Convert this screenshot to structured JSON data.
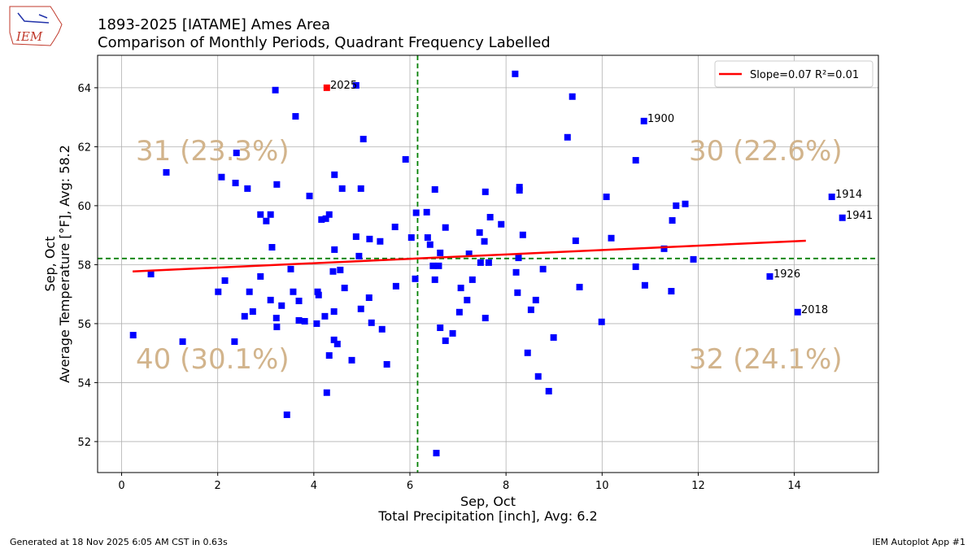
{
  "chart_data": {
    "type": "scatter",
    "title": [
      "1893-2025 [IATAME] Ames Area",
      "Comparison of Monthly Periods, Quadrant Frequency Labelled"
    ],
    "xlabel": [
      "Sep, Oct",
      "Total Precipitation [inch], Avg: 6.2"
    ],
    "ylabel": [
      "Sep, Oct",
      "Average Temperature [°F], Avg: 58.2"
    ],
    "xlim": [
      -0.5,
      15.75
    ],
    "ylim": [
      50.95,
      65.1
    ],
    "xticks": [
      0,
      2,
      4,
      6,
      8,
      10,
      12,
      14
    ],
    "yticks": [
      52,
      54,
      56,
      58,
      60,
      62,
      64
    ],
    "grid": true,
    "x_avg": 6.16,
    "y_avg": 58.21,
    "avg_color": "#008000",
    "series": [
      {
        "color": "#0000ff",
        "x": [
          0.24,
          0.61,
          0.93,
          1.27,
          2.01,
          2.08,
          2.15,
          2.35,
          2.39,
          2.37,
          2.56,
          2.62,
          2.66,
          2.73,
          2.89,
          2.89,
          3.01,
          3.1,
          3.13,
          3.1,
          3.2,
          3.23,
          3.22,
          3.23,
          3.33,
          3.44,
          3.52,
          3.57,
          3.62,
          3.69,
          3.69,
          3.81,
          3.91,
          4.06,
          4.08,
          4.1,
          4.16,
          4.23,
          4.25,
          4.27,
          4.32,
          4.32,
          4.4,
          4.42,
          4.43,
          4.43,
          4.42,
          4.49,
          4.55,
          4.59,
          4.64,
          4.79,
          4.88,
          4.88,
          4.94,
          4.98,
          4.98,
          5.03,
          5.15,
          5.16,
          5.2,
          5.38,
          5.42,
          5.52,
          5.69,
          5.71,
          5.91,
          6.03,
          6.11,
          6.13,
          6.35,
          6.37,
          6.42,
          6.48,
          6.52,
          6.52,
          6.55,
          6.6,
          6.63,
          6.63,
          6.74,
          6.74,
          6.89,
          7.03,
          7.06,
          7.19,
          7.23,
          7.3,
          7.45,
          7.47,
          7.55,
          7.57,
          7.57,
          7.64,
          7.67,
          7.9,
          8.19,
          8.21,
          8.24,
          8.26,
          8.28,
          8.28,
          8.35,
          8.45,
          8.52,
          8.62,
          8.67,
          8.77,
          8.89,
          8.99,
          9.28,
          9.38,
          9.45,
          9.53,
          9.99,
          10.09,
          10.19,
          10.7,
          10.7,
          10.87,
          10.89,
          11.29,
          11.44,
          11.46,
          11.54,
          11.73,
          11.9,
          13.49,
          14.07,
          14.78,
          15.0
        ],
        "values": [
          55.61,
          57.68,
          61.13,
          55.39,
          57.08,
          60.97,
          57.46,
          55.39,
          61.79,
          60.77,
          56.25,
          60.58,
          57.08,
          56.41,
          59.7,
          57.6,
          59.48,
          59.7,
          58.59,
          56.8,
          63.92,
          60.72,
          56.19,
          55.89,
          56.61,
          52.91,
          57.85,
          57.08,
          63.03,
          56.77,
          56.11,
          56.08,
          60.33,
          56.0,
          57.08,
          56.97,
          59.53,
          56.25,
          59.56,
          53.66,
          59.7,
          54.92,
          57.77,
          56.41,
          61.05,
          58.51,
          55.45,
          55.31,
          57.82,
          60.58,
          57.21,
          54.76,
          58.95,
          64.08,
          58.29,
          60.58,
          56.5,
          62.26,
          56.88,
          58.87,
          56.03,
          58.79,
          55.81,
          54.62,
          59.28,
          57.27,
          61.57,
          58.92,
          57.52,
          59.76,
          59.78,
          58.92,
          58.68,
          57.96,
          60.55,
          57.49,
          51.61,
          57.96,
          58.4,
          55.86,
          59.26,
          55.42,
          55.67,
          56.39,
          57.21,
          56.8,
          58.37,
          57.49,
          59.09,
          58.07,
          58.79,
          60.47,
          56.19,
          58.07,
          59.61,
          59.37,
          64.47,
          57.74,
          57.05,
          58.23,
          60.63,
          60.52,
          59.01,
          55.01,
          56.47,
          56.8,
          54.21,
          57.85,
          53.71,
          55.53,
          62.32,
          63.7,
          58.81,
          57.24,
          56.06,
          60.3,
          58.9,
          61.54,
          57.93,
          62.87,
          57.3,
          58.54,
          57.1,
          59.5,
          60.0,
          60.06,
          58.18,
          57.6,
          56.39,
          60.3,
          59.59
        ]
      },
      {
        "color": "#ff0000",
        "x": [
          4.27
        ],
        "values": [
          64.0
        ]
      }
    ],
    "fit": {
      "name": "Slope=0.07 R²=0.01",
      "color": "#ff0000",
      "x": [
        0.23,
        14.24
      ],
      "values": [
        57.77,
        58.81
      ]
    },
    "legend": "upper right",
    "quadrant_labels": [
      "31 (23.3%)",
      "30 (22.6%)",
      "40 (30.1%)",
      "32 (24.1%)"
    ],
    "quadrant_color": "#d2b48c",
    "year_labels": [
      "2025",
      "1900",
      "1914",
      "1941",
      "1926",
      "2018"
    ]
  },
  "logo": "IEM",
  "footer": {
    "left": "Generated at 18 Nov 2025 6:05 AM CST in 0.63s",
    "right": "IEM Autoplot App #1"
  }
}
